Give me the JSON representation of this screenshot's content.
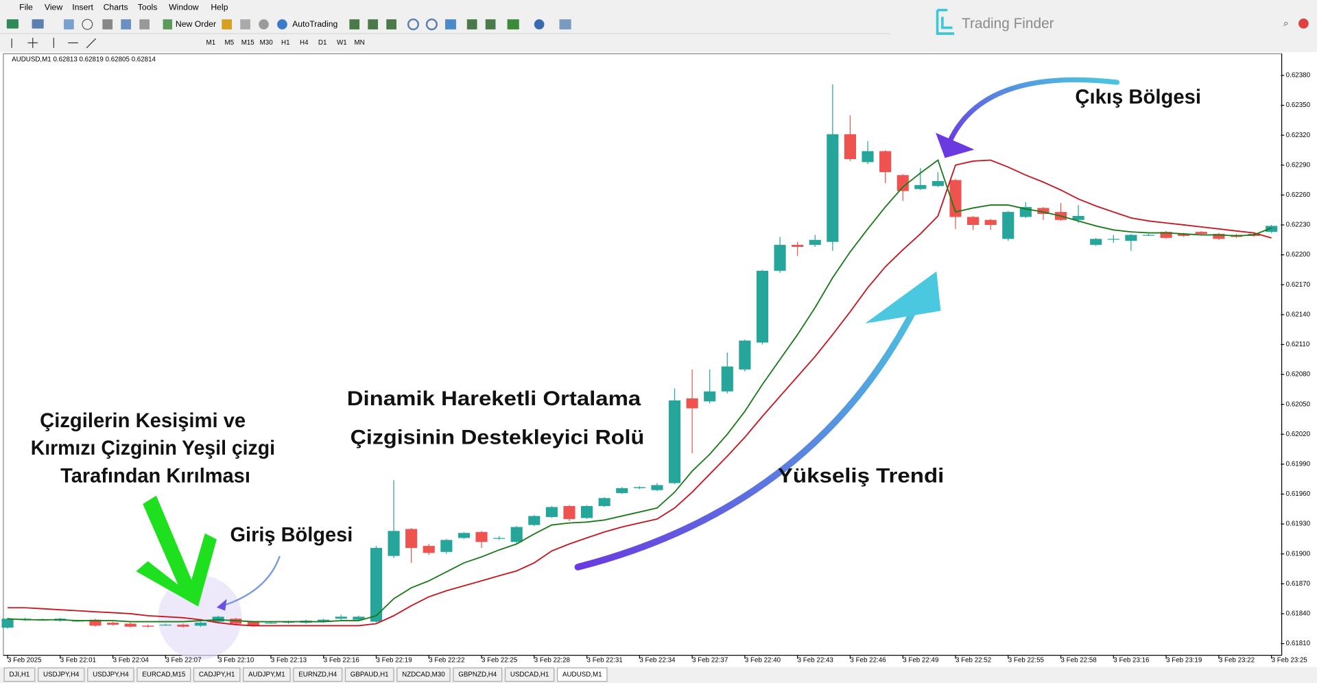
{
  "menu": [
    "File",
    "View",
    "Insert",
    "Charts",
    "Tools",
    "Window",
    "Help"
  ],
  "toolbar": {
    "new_order": "New Order",
    "autotrading": "AutoTrading",
    "timeframes": [
      "M1",
      "M5",
      "M15",
      "M30",
      "H1",
      "H4",
      "D1",
      "W1",
      "MN"
    ]
  },
  "brand": "Trading Finder",
  "tabs": [
    "DJI,H1",
    "USDJPY,H4",
    "USDJPY,H4",
    "EURCAD,M15",
    "CADJPY,H1",
    "AUDJPY,M1",
    "EURNZD,H4",
    "GBPAUD,H1",
    "NZDCAD,M30",
    "GBPNZD,H4",
    "USDCAD,H1",
    "AUDUSD,M1"
  ],
  "chart_data": {
    "type": "candlestick",
    "header": "AUDUSD,M1  0.62813 0.62819 0.62805 0.62814",
    "annotations": [
      "Çizgilerin Kesişimi ve",
      "Kırmızı Çizginin Yeşil çizgi",
      "Tarafından Kırılması",
      "Giriş Bölgesi",
      "Dinamik Hareketli Ortalama",
      "Çizgisinin Destekleyici Rolü",
      "Yükseliş Trendi",
      "Çıkış Bölgesi"
    ],
    "up_color": "#26a69a",
    "down_color": "#ef5350",
    "categories": [
      "3 Feb 2025",
      null,
      null,
      "3 Feb 22:01",
      null,
      null,
      "3 Feb 22:04",
      null,
      null,
      "3 Feb 22:07",
      null,
      null,
      "3 Feb 22:10",
      null,
      null,
      "3 Feb 22:13",
      null,
      null,
      "3 Feb 22:16",
      null,
      null,
      "3 Feb 22:19",
      null,
      null,
      "3 Feb 22:22",
      null,
      null,
      "3 Feb 22:25",
      null,
      null,
      "3 Feb 22:28",
      null,
      null,
      "3 Feb 22:31",
      null,
      null,
      "3 Feb 22:34",
      null,
      null,
      "3 Feb 22:37",
      null,
      null,
      "3 Feb 22:40",
      null,
      null,
      "3 Feb 22:43",
      null,
      null,
      "3 Feb 22:46",
      null,
      null,
      "3 Feb 22:49",
      null,
      null,
      "3 Feb 22:52",
      null,
      null,
      "3 Feb 22:55",
      null,
      null,
      "3 Feb 22:58",
      null,
      null,
      "3 Feb 23:16",
      null,
      null,
      "3 Feb 23:19",
      null,
      null,
      "3 Feb 23:22",
      null,
      null,
      "3 Feb 23:25"
    ],
    "open": [
      0.61826,
      0.61834,
      0.61834,
      0.61833,
      0.61833,
      0.61834,
      0.61831,
      0.6183,
      0.61828,
      0.61829,
      0.61829,
      0.61828,
      0.61832,
      0.61835,
      0.61832,
      0.61831,
      0.61831,
      0.61831,
      0.61832,
      0.61835,
      0.61834,
      0.61832,
      0.61898,
      0.61925,
      0.61908,
      0.61902,
      0.61916,
      0.61922,
      0.61916,
      0.61912,
      0.61929,
      0.61937,
      0.61948,
      0.61936,
      0.61948,
      0.61961,
      0.61966,
      0.61964,
      0.61971,
      0.62056,
      0.62053,
      0.62063,
      0.62085,
      0.62112,
      0.62184,
      0.6221,
      0.6221,
      0.62213,
      0.62321,
      0.62293,
      0.62304,
      0.6228,
      0.62266,
      0.62269,
      0.62275,
      0.62238,
      0.62235,
      0.62216,
      0.62238,
      0.62247,
      0.62243,
      0.62235,
      0.6221,
      0.62216,
      0.62214,
      0.6222,
      0.62223,
      0.62221,
      0.62223,
      0.62221,
      0.6222,
      0.62221,
      0.62223
    ],
    "high": [
      0.61836,
      0.61836,
      0.61835,
      0.61836,
      0.61834,
      0.61835,
      0.61832,
      0.61831,
      0.61829,
      0.6183,
      0.6183,
      0.61832,
      0.61838,
      0.61836,
      0.61833,
      0.61832,
      0.61833,
      0.61834,
      0.61835,
      0.61839,
      0.61838,
      0.61908,
      0.61974,
      0.61926,
      0.6191,
      0.61915,
      0.61922,
      0.61923,
      0.61918,
      0.61928,
      0.61939,
      0.61948,
      0.61949,
      0.61949,
      0.61957,
      0.61967,
      0.61968,
      0.61971,
      0.62066,
      0.62085,
      0.62085,
      0.62102,
      0.62115,
      0.62185,
      0.62218,
      0.62213,
      0.6222,
      0.62371,
      0.6234,
      0.62314,
      0.62305,
      0.62281,
      0.62287,
      0.62283,
      0.62276,
      0.62239,
      0.62236,
      0.62244,
      0.62253,
      0.62248,
      0.62252,
      0.6225,
      0.62217,
      0.6222,
      0.62221,
      0.62221,
      0.62224,
      0.62222,
      0.62224,
      0.62222,
      0.62221,
      0.62222,
      0.6223
    ],
    "low": [
      0.61825,
      0.61833,
      0.61833,
      0.61832,
      0.61832,
      0.61827,
      0.61828,
      0.61826,
      0.61826,
      0.61828,
      0.61826,
      0.61827,
      0.61831,
      0.61829,
      0.61827,
      0.6183,
      0.6183,
      0.6183,
      0.61831,
      0.61834,
      0.61833,
      0.61831,
      0.61896,
      0.61891,
      0.61899,
      0.619,
      0.61915,
      0.61906,
      0.61914,
      0.6191,
      0.61928,
      0.61936,
      0.61933,
      0.61935,
      0.61947,
      0.6196,
      0.61965,
      0.61963,
      0.6197,
      0.62001,
      0.62051,
      0.62061,
      0.62083,
      0.6211,
      0.62182,
      0.62199,
      0.62208,
      0.62204,
      0.62294,
      0.62291,
      0.62272,
      0.62254,
      0.62265,
      0.62268,
      0.62226,
      0.62225,
      0.62225,
      0.62214,
      0.62237,
      0.62235,
      0.62234,
      0.62232,
      0.62209,
      0.62212,
      0.62204,
      0.62219,
      0.62216,
      0.62218,
      0.6222,
      0.62215,
      0.62217,
      0.62218,
      0.62222
    ],
    "close": [
      0.61835,
      0.61835,
      0.61834,
      0.61835,
      0.61833,
      0.61828,
      0.61829,
      0.61827,
      0.61827,
      0.61829,
      0.61827,
      0.61831,
      0.61837,
      0.6183,
      0.61828,
      0.61831,
      0.61832,
      0.61833,
      0.61834,
      0.61837,
      0.61837,
      0.61906,
      0.61923,
      0.61906,
      0.61901,
      0.61914,
      0.61921,
      0.61912,
      0.61916,
      0.61927,
      0.61938,
      0.61947,
      0.61935,
      0.61948,
      0.61956,
      0.61966,
      0.61967,
      0.61969,
      0.62054,
      0.62046,
      0.62063,
      0.62088,
      0.62114,
      0.62184,
      0.6221,
      0.62208,
      0.62215,
      0.62321,
      0.62296,
      0.62304,
      0.62283,
      0.62264,
      0.6227,
      0.62274,
      0.62238,
      0.6223,
      0.6223,
      0.62243,
      0.62248,
      0.62241,
      0.62235,
      0.62239,
      0.62216,
      0.62216,
      0.6222,
      0.6222,
      0.62217,
      0.62219,
      0.62221,
      0.62216,
      0.62218,
      0.62219,
      0.62229
    ],
    "lines": [
      {
        "color": "#c8141e",
        "values": [
          0.61846,
          0.61846,
          0.61845,
          0.61844,
          0.61843,
          0.61842,
          0.61841,
          0.6184,
          0.61838,
          0.61837,
          0.61836,
          0.61834,
          0.61831,
          0.61829,
          0.61828,
          0.61828,
          0.61828,
          0.61828,
          0.61828,
          0.61828,
          0.61828,
          0.6183,
          0.61838,
          0.61848,
          0.61857,
          0.61863,
          0.61868,
          0.61873,
          0.61878,
          0.61883,
          0.61891,
          0.61903,
          0.6191,
          0.61916,
          0.61922,
          0.61927,
          0.61931,
          0.61935,
          0.61946,
          0.61962,
          0.6198,
          0.61998,
          0.62017,
          0.62038,
          0.62058,
          0.62078,
          0.62098,
          0.6212,
          0.62143,
          0.62167,
          0.62188,
          0.62205,
          0.62221,
          0.62239,
          0.6229,
          0.62294,
          0.62295,
          0.62288,
          0.6228,
          0.62273,
          0.62265,
          0.62256,
          0.62249,
          0.62243,
          0.62237,
          0.62234,
          0.62232,
          0.6223,
          0.62228,
          0.62226,
          0.62224,
          0.62222,
          0.62217
        ]
      },
      {
        "color": "#1a7a1a",
        "values": [
          0.61835,
          0.61834,
          0.61834,
          0.61834,
          0.61833,
          0.61833,
          0.61833,
          0.61832,
          0.61832,
          0.61832,
          0.61832,
          0.61833,
          0.61834,
          0.61833,
          0.61832,
          0.61832,
          0.61832,
          0.61832,
          0.61832,
          0.61833,
          0.61833,
          0.61838,
          0.61855,
          0.61866,
          0.61873,
          0.61882,
          0.61891,
          0.61897,
          0.61904,
          0.6191,
          0.6192,
          0.61929,
          0.61931,
          0.61932,
          0.61934,
          0.61938,
          0.61942,
          0.61946,
          0.61962,
          0.61983,
          0.62,
          0.6202,
          0.62043,
          0.6207,
          0.62095,
          0.6212,
          0.62147,
          0.62177,
          0.62203,
          0.62226,
          0.62248,
          0.62268,
          0.62282,
          0.62295,
          0.62243,
          0.62247,
          0.6225,
          0.6225,
          0.62246,
          0.62243,
          0.62239,
          0.62234,
          0.62229,
          0.62225,
          0.62223,
          0.62222,
          0.62222,
          0.62221,
          0.6222,
          0.6222,
          0.62219,
          0.6222,
          0.62227
        ]
      }
    ],
    "ylim": [
      0.618,
      0.624
    ],
    "yticks": [
      {
        "value": 0.6238,
        "label": "0.62380"
      },
      {
        "value": 0.6235,
        "label": "0.62350"
      },
      {
        "value": 0.6232,
        "label": "0.62320"
      },
      {
        "value": 0.6229,
        "label": "0.62290"
      },
      {
        "value": 0.6226,
        "label": "0.62260"
      },
      {
        "value": 0.6223,
        "label": "0.62230"
      },
      {
        "value": 0.622,
        "label": "0.62200"
      },
      {
        "value": 0.6217,
        "label": "0.62170"
      },
      {
        "value": 0.6214,
        "label": "0.62140"
      },
      {
        "value": 0.6211,
        "label": "0.62110"
      },
      {
        "value": 0.6208,
        "label": "0.62080"
      },
      {
        "value": 0.6205,
        "label": "0.62050"
      },
      {
        "value": 0.6202,
        "label": "0.62020"
      },
      {
        "value": 0.6199,
        "label": "0.61990"
      },
      {
        "value": 0.6196,
        "label": "0.61960"
      },
      {
        "value": 0.6193,
        "label": "0.61930"
      },
      {
        "value": 0.619,
        "label": "0.61900"
      },
      {
        "value": 0.6187,
        "label": "0.61870"
      },
      {
        "value": 0.6184,
        "label": "0.61840"
      },
      {
        "value": 0.6181,
        "label": "0.61810"
      }
    ]
  }
}
